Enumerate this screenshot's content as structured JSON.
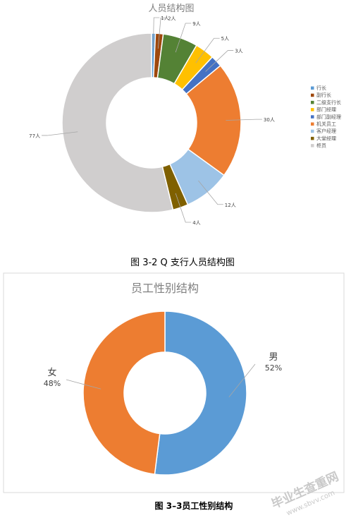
{
  "chart_data": [
    {
      "type": "pie",
      "style": "donut",
      "title": "人员结构图",
      "categories": [
        "行长",
        "副行长",
        "二级支行长",
        "部门经理",
        "部门副经理",
        "机关员工",
        "客户经理",
        "大堂经理",
        "柜员"
      ],
      "values": [
        1,
        2,
        9,
        5,
        3,
        30,
        12,
        4,
        77
      ],
      "data_labels": [
        "1人",
        "2人",
        "9人",
        "5人",
        "3人",
        "30人",
        "12人",
        "4人",
        "77人"
      ],
      "colors": [
        "#5b9bd5",
        "#9e480e",
        "#548235",
        "#ffc000",
        "#4472c4",
        "#ed7d31",
        "#9dc3e6",
        "#7f6000",
        "#d0cece"
      ],
      "legend": "right",
      "caption": "图 3-2 Q 支行人员结构图"
    },
    {
      "type": "pie",
      "style": "donut",
      "title": "员工性别结构",
      "categories": [
        "男",
        "女"
      ],
      "values": [
        52,
        48
      ],
      "percent_labels": [
        "52%",
        "48%"
      ],
      "colors": [
        "#5b9bd5",
        "#ed7d31"
      ],
      "legend": "none",
      "caption": "图 3–3员工性别结构"
    }
  ],
  "watermark": {
    "main": "毕业生查重网",
    "sub": "www.sbvv.com"
  }
}
